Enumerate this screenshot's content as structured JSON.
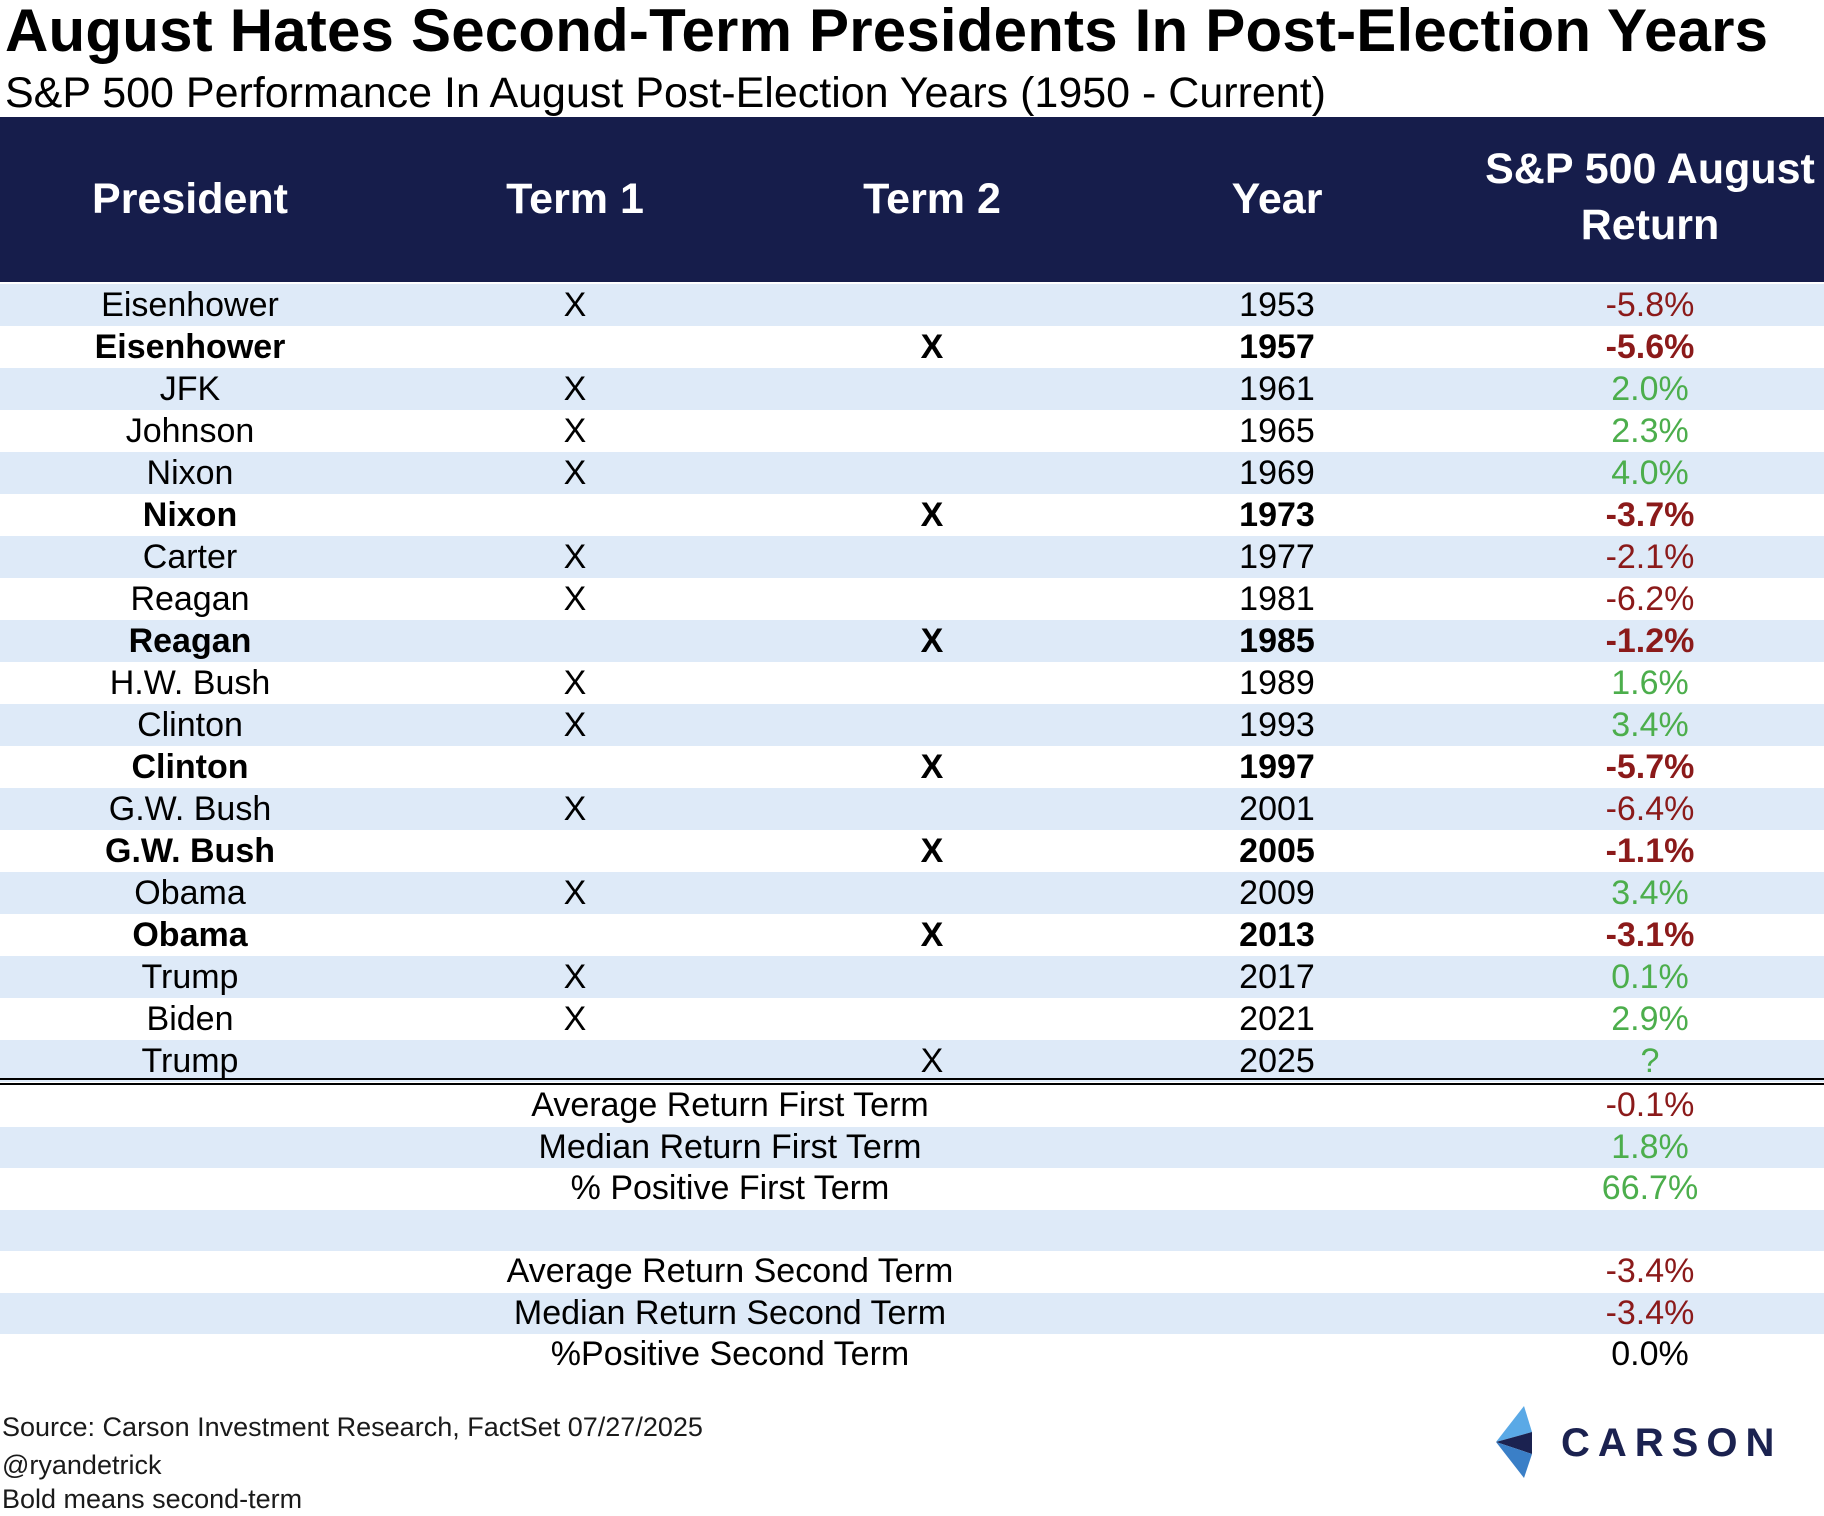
{
  "title": "August Hates Second-Term Presidents In Post-Election Years",
  "subtitle": "S&P 500 Performance In August Post-Election Years (1950 - Current)",
  "columns": {
    "president": "President",
    "term1": "Term 1",
    "term2": "Term 2",
    "year": "Year",
    "return_line1": "S&P 500 August",
    "return_line2": "Return"
  },
  "chart_data": {
    "type": "table",
    "title": "August Hates Second-Term Presidents In Post-Election Years",
    "subtitle": "S&P 500 Performance In August Post-Election Years (1950 - Current)",
    "headers": [
      "President",
      "Term 1",
      "Term 2",
      "Year",
      "S&P 500 August Return"
    ],
    "rows": [
      {
        "president": "Eisenhower",
        "term1": "X",
        "term2": "",
        "year": "1953",
        "ret": "-5.8%",
        "bold": false,
        "sign": "neg"
      },
      {
        "president": "Eisenhower",
        "term1": "",
        "term2": "X",
        "year": "1957",
        "ret": "-5.6%",
        "bold": true,
        "sign": "neg"
      },
      {
        "president": "JFK",
        "term1": "X",
        "term2": "",
        "year": "1961",
        "ret": "2.0%",
        "bold": false,
        "sign": "pos"
      },
      {
        "president": "Johnson",
        "term1": "X",
        "term2": "",
        "year": "1965",
        "ret": "2.3%",
        "bold": false,
        "sign": "pos"
      },
      {
        "president": "Nixon",
        "term1": "X",
        "term2": "",
        "year": "1969",
        "ret": "4.0%",
        "bold": false,
        "sign": "pos"
      },
      {
        "president": "Nixon",
        "term1": "",
        "term2": "X",
        "year": "1973",
        "ret": "-3.7%",
        "bold": true,
        "sign": "neg"
      },
      {
        "president": "Carter",
        "term1": "X",
        "term2": "",
        "year": "1977",
        "ret": "-2.1%",
        "bold": false,
        "sign": "neg"
      },
      {
        "president": "Reagan",
        "term1": "X",
        "term2": "",
        "year": "1981",
        "ret": "-6.2%",
        "bold": false,
        "sign": "neg"
      },
      {
        "president": "Reagan",
        "term1": "",
        "term2": "X",
        "year": "1985",
        "ret": "-1.2%",
        "bold": true,
        "sign": "neg"
      },
      {
        "president": "H.W. Bush",
        "term1": "X",
        "term2": "",
        "year": "1989",
        "ret": "1.6%",
        "bold": false,
        "sign": "pos"
      },
      {
        "president": "Clinton",
        "term1": "X",
        "term2": "",
        "year": "1993",
        "ret": "3.4%",
        "bold": false,
        "sign": "pos"
      },
      {
        "president": "Clinton",
        "term1": "",
        "term2": "X",
        "year": "1997",
        "ret": "-5.7%",
        "bold": true,
        "sign": "neg"
      },
      {
        "president": "G.W. Bush",
        "term1": "X",
        "term2": "",
        "year": "2001",
        "ret": "-6.4%",
        "bold": false,
        "sign": "neg"
      },
      {
        "president": "G.W. Bush",
        "term1": "",
        "term2": "X",
        "year": "2005",
        "ret": "-1.1%",
        "bold": true,
        "sign": "neg"
      },
      {
        "president": "Obama",
        "term1": "X",
        "term2": "",
        "year": "2009",
        "ret": "3.4%",
        "bold": false,
        "sign": "pos"
      },
      {
        "president": "Obama",
        "term1": "",
        "term2": "X",
        "year": "2013",
        "ret": "-3.1%",
        "bold": true,
        "sign": "neg"
      },
      {
        "president": "Trump",
        "term1": "X",
        "term2": "",
        "year": "2017",
        "ret": "0.1%",
        "bold": false,
        "sign": "pos"
      },
      {
        "president": "Biden",
        "term1": "X",
        "term2": "",
        "year": "2021",
        "ret": "2.9%",
        "bold": false,
        "sign": "pos"
      },
      {
        "president": "Trump",
        "term1": "",
        "term2": "X",
        "year": "2025",
        "ret": "?",
        "bold": false,
        "sign": "pos"
      }
    ],
    "summary": [
      {
        "label": "Average Return First Term",
        "value": "-0.1%",
        "sign": "neg"
      },
      {
        "label": "Median Return First Term",
        "value": "1.8%",
        "sign": "pos"
      },
      {
        "label": "% Positive First Term",
        "value": "66.7%",
        "sign": "pos"
      },
      {
        "label": "",
        "value": "",
        "sign": "neutral"
      },
      {
        "label": "Average Return Second Term",
        "value": "-3.4%",
        "sign": "neg"
      },
      {
        "label": "Median Return Second Term",
        "value": "-3.4%",
        "sign": "neg"
      },
      {
        "label": "%Positive Second Term",
        "value": "0.0%",
        "sign": "neutral"
      }
    ]
  },
  "colors": {
    "header_bg": "#161d4b",
    "row_shade": "#deeaf8",
    "negative": "#8b1a1a",
    "positive": "#4cae4c"
  },
  "footer": {
    "source": "Source: Carson Investment Research, FactSet 07/27/2025",
    "handle": "@ryandetrick",
    "note": "Bold means second-term"
  },
  "logo": {
    "text": "CARSON",
    "icon": "carson-chevron-icon"
  }
}
